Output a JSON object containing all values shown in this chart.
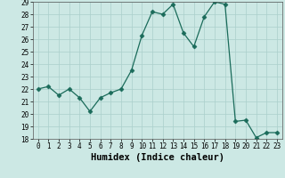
{
  "x": [
    0,
    1,
    2,
    3,
    4,
    5,
    6,
    7,
    8,
    9,
    10,
    11,
    12,
    13,
    14,
    15,
    16,
    17,
    18,
    19,
    20,
    21,
    22,
    23
  ],
  "y": [
    22,
    22.2,
    21.5,
    22,
    21.3,
    20.2,
    21.3,
    21.7,
    22,
    23.5,
    26.3,
    28.2,
    28.0,
    28.8,
    26.5,
    25.4,
    27.8,
    29.0,
    28.8,
    19.4,
    19.5,
    18.1,
    18.5,
    18.5
  ],
  "line_color": "#1a6b5a",
  "marker": "D",
  "marker_size": 2.5,
  "bg_color": "#cce8e4",
  "grid_color": "#aacfcb",
  "xlabel": "Humidex (Indice chaleur)",
  "ylim_min": 18,
  "ylim_max": 29,
  "xlim_min": -0.5,
  "xlim_max": 23.5,
  "yticks": [
    18,
    19,
    20,
    21,
    22,
    23,
    24,
    25,
    26,
    27,
    28,
    29
  ],
  "xticks": [
    0,
    1,
    2,
    3,
    4,
    5,
    6,
    7,
    8,
    9,
    10,
    11,
    12,
    13,
    14,
    15,
    16,
    17,
    18,
    19,
    20,
    21,
    22,
    23
  ],
  "tick_fontsize": 5.5,
  "xlabel_fontsize": 7.5
}
